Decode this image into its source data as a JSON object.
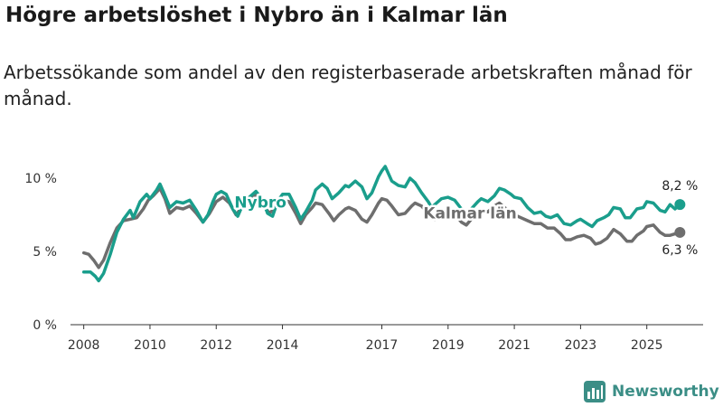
{
  "title": "Högre arbetslöshet i Nybro än i Kalmar län",
  "subtitle": "Arbetssökande som andel av den registerbaserade arbetskraften månad för månad.",
  "brand": "Newsworthy",
  "colors": {
    "nybro": "#1a9e8c",
    "kalmar": "#6e6e6e",
    "axis": "#333333",
    "grid": "#d8d8d8"
  },
  "chart_data": {
    "type": "line",
    "title": "Högre arbetslöshet i Nybro än i Kalmar län",
    "xlabel": "",
    "ylabel": "",
    "xlim": [
      2007.6,
      2026.7
    ],
    "ylim": [
      0,
      10
    ],
    "x_ticks": [
      2008,
      2010,
      2012,
      2014,
      2017,
      2019,
      2021,
      2023,
      2025
    ],
    "x_tick_labels": [
      "2008",
      "2010",
      "2012",
      "2014",
      "2017",
      "2019",
      "2021",
      "2023",
      "2025"
    ],
    "y_ticks": [
      0,
      5,
      10
    ],
    "y_tick_labels": [
      "0 %",
      "5 %",
      "10 %"
    ],
    "series": [
      {
        "name": "Nybro",
        "label": "Nybro",
        "last_label": "8,2 %",
        "points": [
          [
            2008.0,
            3.6
          ],
          [
            2008.2,
            3.6
          ],
          [
            2008.35,
            3.3
          ],
          [
            2008.45,
            3.0
          ],
          [
            2008.6,
            3.5
          ],
          [
            2008.8,
            4.8
          ],
          [
            2009.0,
            6.3
          ],
          [
            2009.2,
            7.2
          ],
          [
            2009.4,
            7.8
          ],
          [
            2009.5,
            7.3
          ],
          [
            2009.7,
            8.4
          ],
          [
            2009.9,
            8.9
          ],
          [
            2010.0,
            8.6
          ],
          [
            2010.2,
            9.2
          ],
          [
            2010.3,
            9.6
          ],
          [
            2010.4,
            9.1
          ],
          [
            2010.6,
            8.0
          ],
          [
            2010.8,
            8.4
          ],
          [
            2011.0,
            8.3
          ],
          [
            2011.2,
            8.5
          ],
          [
            2011.4,
            7.8
          ],
          [
            2011.6,
            7.0
          ],
          [
            2011.75,
            7.5
          ],
          [
            2011.9,
            8.4
          ],
          [
            2012.0,
            8.9
          ],
          [
            2012.15,
            9.1
          ],
          [
            2012.3,
            8.9
          ],
          [
            2012.5,
            7.9
          ],
          [
            2012.65,
            7.4
          ],
          [
            2012.8,
            8.2
          ],
          [
            2013.0,
            8.7
          ],
          [
            2013.2,
            9.1
          ],
          [
            2013.4,
            8.5
          ],
          [
            2013.55,
            7.6
          ],
          [
            2013.7,
            7.4
          ],
          [
            2013.85,
            8.4
          ],
          [
            2014.0,
            8.9
          ],
          [
            2014.2,
            8.9
          ],
          [
            2014.4,
            8.0
          ],
          [
            2014.55,
            7.2
          ],
          [
            2014.7,
            7.7
          ],
          [
            2014.9,
            8.5
          ],
          [
            2015.0,
            9.2
          ],
          [
            2015.2,
            9.6
          ],
          [
            2015.35,
            9.3
          ],
          [
            2015.5,
            8.6
          ],
          [
            2015.7,
            9.0
          ],
          [
            2015.9,
            9.5
          ],
          [
            2016.0,
            9.4
          ],
          [
            2016.2,
            9.8
          ],
          [
            2016.4,
            9.4
          ],
          [
            2016.55,
            8.6
          ],
          [
            2016.7,
            9.0
          ],
          [
            2016.9,
            10.1
          ],
          [
            2017.0,
            10.5
          ],
          [
            2017.1,
            10.8
          ],
          [
            2017.3,
            9.8
          ],
          [
            2017.5,
            9.5
          ],
          [
            2017.7,
            9.4
          ],
          [
            2017.85,
            10.0
          ],
          [
            2018.0,
            9.7
          ],
          [
            2018.2,
            9.0
          ],
          [
            2018.4,
            8.4
          ],
          [
            2018.5,
            8.0
          ],
          [
            2018.65,
            8.3
          ],
          [
            2018.8,
            8.6
          ],
          [
            2019.0,
            8.7
          ],
          [
            2019.2,
            8.5
          ],
          [
            2019.4,
            7.9
          ],
          [
            2019.55,
            7.6
          ],
          [
            2019.7,
            7.9
          ],
          [
            2019.9,
            8.4
          ],
          [
            2020.0,
            8.6
          ],
          [
            2020.2,
            8.4
          ],
          [
            2020.4,
            8.8
          ],
          [
            2020.55,
            9.3
          ],
          [
            2020.7,
            9.2
          ],
          [
            2020.9,
            8.9
          ],
          [
            2021.0,
            8.7
          ],
          [
            2021.2,
            8.6
          ],
          [
            2021.4,
            8.0
          ],
          [
            2021.6,
            7.6
          ],
          [
            2021.8,
            7.7
          ],
          [
            2021.95,
            7.4
          ],
          [
            2022.1,
            7.3
          ],
          [
            2022.3,
            7.5
          ],
          [
            2022.5,
            6.9
          ],
          [
            2022.7,
            6.8
          ],
          [
            2022.9,
            7.1
          ],
          [
            2023.0,
            7.2
          ],
          [
            2023.2,
            6.9
          ],
          [
            2023.35,
            6.7
          ],
          [
            2023.5,
            7.1
          ],
          [
            2023.7,
            7.3
          ],
          [
            2023.85,
            7.5
          ],
          [
            2024.0,
            8.0
          ],
          [
            2024.2,
            7.9
          ],
          [
            2024.35,
            7.3
          ],
          [
            2024.5,
            7.3
          ],
          [
            2024.7,
            7.9
          ],
          [
            2024.9,
            8.0
          ],
          [
            2025.0,
            8.4
          ],
          [
            2025.2,
            8.3
          ],
          [
            2025.4,
            7.8
          ],
          [
            2025.55,
            7.7
          ],
          [
            2025.7,
            8.2
          ],
          [
            2025.85,
            7.9
          ],
          [
            2026.0,
            8.2
          ]
        ]
      },
      {
        "name": "Kalmar län",
        "label": "Kalmar län",
        "last_label": "6,3 %",
        "points": [
          [
            2008.0,
            4.9
          ],
          [
            2008.15,
            4.8
          ],
          [
            2008.3,
            4.4
          ],
          [
            2008.45,
            3.9
          ],
          [
            2008.6,
            4.4
          ],
          [
            2008.8,
            5.6
          ],
          [
            2009.0,
            6.6
          ],
          [
            2009.2,
            7.1
          ],
          [
            2009.4,
            7.2
          ],
          [
            2009.6,
            7.3
          ],
          [
            2009.8,
            7.9
          ],
          [
            2009.95,
            8.5
          ],
          [
            2010.1,
            8.8
          ],
          [
            2010.3,
            9.3
          ],
          [
            2010.45,
            8.6
          ],
          [
            2010.6,
            7.6
          ],
          [
            2010.8,
            8.0
          ],
          [
            2011.0,
            7.9
          ],
          [
            2011.2,
            8.1
          ],
          [
            2011.4,
            7.6
          ],
          [
            2011.6,
            7.0
          ],
          [
            2011.8,
            7.6
          ],
          [
            2012.0,
            8.4
          ],
          [
            2012.2,
            8.7
          ],
          [
            2012.4,
            8.3
          ],
          [
            2012.6,
            7.5
          ],
          [
            2012.8,
            8.1
          ],
          [
            2013.0,
            8.6
          ],
          [
            2013.2,
            8.9
          ],
          [
            2013.4,
            8.3
          ],
          [
            2013.6,
            7.6
          ],
          [
            2013.8,
            8.0
          ],
          [
            2014.0,
            8.5
          ],
          [
            2014.2,
            8.4
          ],
          [
            2014.4,
            7.6
          ],
          [
            2014.55,
            6.9
          ],
          [
            2014.7,
            7.5
          ],
          [
            2014.9,
            8.0
          ],
          [
            2015.0,
            8.3
          ],
          [
            2015.2,
            8.2
          ],
          [
            2015.4,
            7.6
          ],
          [
            2015.55,
            7.1
          ],
          [
            2015.7,
            7.5
          ],
          [
            2015.9,
            7.9
          ],
          [
            2016.0,
            8.0
          ],
          [
            2016.2,
            7.8
          ],
          [
            2016.4,
            7.2
          ],
          [
            2016.55,
            7.0
          ],
          [
            2016.7,
            7.5
          ],
          [
            2016.9,
            8.3
          ],
          [
            2017.0,
            8.6
          ],
          [
            2017.15,
            8.5
          ],
          [
            2017.3,
            8.1
          ],
          [
            2017.5,
            7.5
          ],
          [
            2017.7,
            7.6
          ],
          [
            2017.9,
            8.1
          ],
          [
            2018.0,
            8.3
          ],
          [
            2018.2,
            8.1
          ],
          [
            2018.4,
            7.6
          ],
          [
            2018.6,
            7.2
          ],
          [
            2018.8,
            7.6
          ],
          [
            2019.0,
            7.8
          ],
          [
            2019.2,
            7.6
          ],
          [
            2019.4,
            7.0
          ],
          [
            2019.55,
            6.8
          ],
          [
            2019.7,
            7.2
          ],
          [
            2019.9,
            7.6
          ],
          [
            2020.0,
            7.8
          ],
          [
            2020.2,
            7.7
          ],
          [
            2020.4,
            8.1
          ],
          [
            2020.55,
            8.3
          ],
          [
            2020.7,
            8.0
          ],
          [
            2020.9,
            7.7
          ],
          [
            2021.0,
            7.5
          ],
          [
            2021.2,
            7.3
          ],
          [
            2021.4,
            7.1
          ],
          [
            2021.6,
            6.9
          ],
          [
            2021.8,
            6.9
          ],
          [
            2022.0,
            6.6
          ],
          [
            2022.2,
            6.6
          ],
          [
            2022.4,
            6.2
          ],
          [
            2022.55,
            5.8
          ],
          [
            2022.7,
            5.8
          ],
          [
            2022.9,
            6.0
          ],
          [
            2023.1,
            6.1
          ],
          [
            2023.3,
            5.9
          ],
          [
            2023.45,
            5.5
          ],
          [
            2023.6,
            5.6
          ],
          [
            2023.8,
            5.9
          ],
          [
            2024.0,
            6.5
          ],
          [
            2024.2,
            6.2
          ],
          [
            2024.4,
            5.7
          ],
          [
            2024.55,
            5.7
          ],
          [
            2024.7,
            6.1
          ],
          [
            2024.9,
            6.4
          ],
          [
            2025.0,
            6.7
          ],
          [
            2025.2,
            6.8
          ],
          [
            2025.4,
            6.3
          ],
          [
            2025.55,
            6.1
          ],
          [
            2025.7,
            6.1
          ],
          [
            2025.85,
            6.2
          ],
          [
            2026.0,
            6.3
          ]
        ]
      }
    ]
  }
}
